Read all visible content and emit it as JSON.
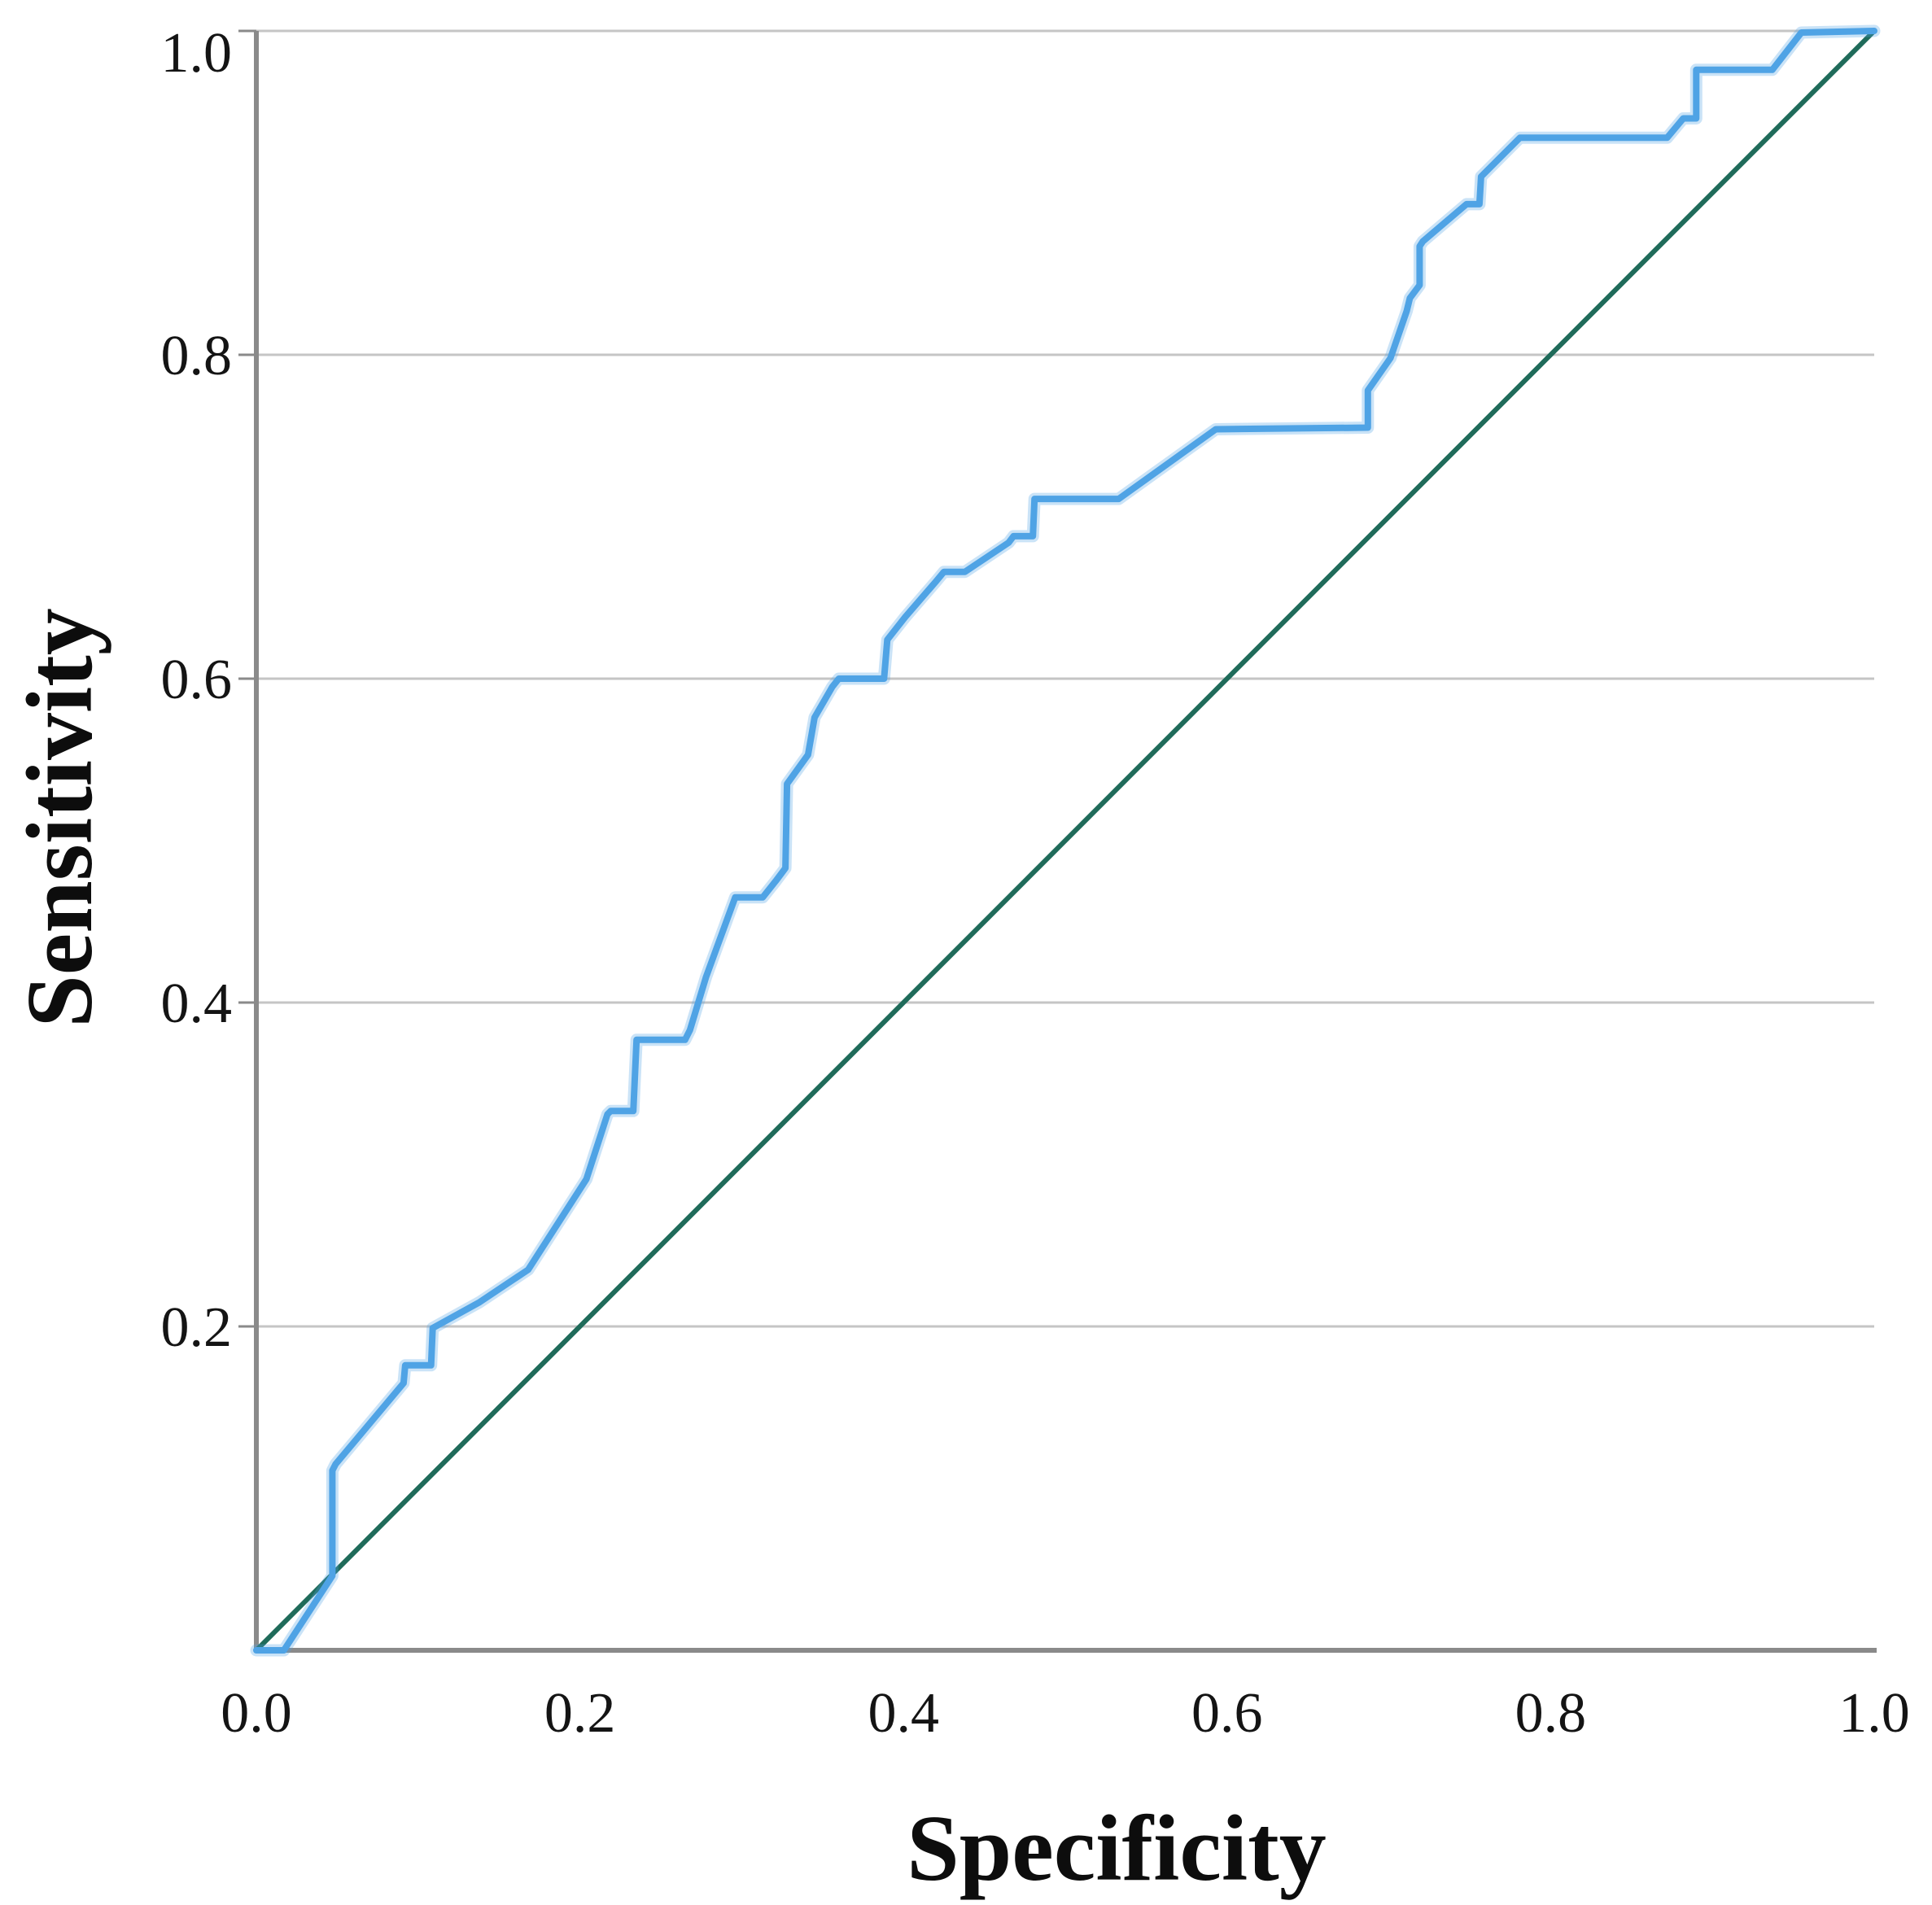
{
  "chart_data": {
    "type": "line",
    "title": "",
    "xlabel": "Specificity",
    "ylabel": "Sensitivity",
    "xlim": [
      0,
      1
    ],
    "ylim": [
      0,
      1
    ],
    "grid": "horizontal-only",
    "legend": "none",
    "x_ticks": {
      "values": [
        0,
        0.2,
        0.4,
        0.6,
        0.8,
        1.0
      ],
      "labels": [
        "0.0",
        "0.2",
        "0.4",
        "0.6",
        "0.8",
        "1.0"
      ]
    },
    "y_ticks": {
      "values": [
        0.2,
        0.4,
        0.6,
        0.8,
        1.0
      ],
      "labels": [
        "0.2",
        "0.4",
        "0.6",
        "0.8",
        "1.0"
      ]
    },
    "horizontal_gridlines": [
      0.2,
      0.4,
      0.6,
      0.8,
      1.0
    ],
    "series": [
      {
        "name": "ROC curve",
        "color": "#4FA3E5",
        "points": [
          [
            0.0,
            0.0
          ],
          [
            0.017,
            0.0
          ],
          [
            0.047,
            0.046
          ],
          [
            0.047,
            0.111
          ],
          [
            0.049,
            0.115
          ],
          [
            0.091,
            0.165
          ],
          [
            0.092,
            0.176
          ],
          [
            0.108,
            0.176
          ],
          [
            0.109,
            0.199
          ],
          [
            0.138,
            0.215
          ],
          [
            0.168,
            0.235
          ],
          [
            0.204,
            0.291
          ],
          [
            0.217,
            0.331
          ],
          [
            0.219,
            0.333
          ],
          [
            0.233,
            0.333
          ],
          [
            0.235,
            0.377
          ],
          [
            0.265,
            0.377
          ],
          [
            0.268,
            0.383
          ],
          [
            0.278,
            0.416
          ],
          [
            0.296,
            0.465
          ],
          [
            0.313,
            0.465
          ],
          [
            0.321,
            0.475
          ],
          [
            0.327,
            0.483
          ],
          [
            0.328,
            0.535
          ],
          [
            0.341,
            0.553
          ],
          [
            0.345,
            0.576
          ],
          [
            0.356,
            0.595
          ],
          [
            0.36,
            0.6
          ],
          [
            0.388,
            0.6
          ],
          [
            0.39,
            0.624
          ],
          [
            0.401,
            0.638
          ],
          [
            0.42,
            0.66
          ],
          [
            0.425,
            0.666
          ],
          [
            0.438,
            0.666
          ],
          [
            0.465,
            0.684
          ],
          [
            0.468,
            0.688
          ],
          [
            0.48,
            0.688
          ],
          [
            0.481,
            0.711
          ],
          [
            0.533,
            0.711
          ],
          [
            0.593,
            0.754
          ],
          [
            0.687,
            0.755
          ],
          [
            0.687,
            0.778
          ],
          [
            0.701,
            0.798
          ],
          [
            0.711,
            0.827
          ],
          [
            0.713,
            0.835
          ],
          [
            0.719,
            0.843
          ],
          [
            0.719,
            0.867
          ],
          [
            0.721,
            0.87
          ],
          [
            0.748,
            0.893
          ],
          [
            0.756,
            0.893
          ],
          [
            0.757,
            0.91
          ],
          [
            0.781,
            0.934
          ],
          [
            0.872,
            0.934
          ],
          [
            0.882,
            0.946
          ],
          [
            0.89,
            0.946
          ],
          [
            0.89,
            0.976
          ],
          [
            0.937,
            0.976
          ],
          [
            0.955,
            0.999
          ],
          [
            1.0,
            1.0
          ]
        ]
      },
      {
        "name": "Reference diagonal",
        "color": "#1F6B5A",
        "points": [
          [
            0,
            0
          ],
          [
            1,
            1
          ]
        ]
      }
    ],
    "colors": {
      "roc_line": "#4FA3E5",
      "roc_halo": "rgba(79,163,229,0.30)",
      "reference_line": "#1F6B5A",
      "axis": "#8A8A8A",
      "gridline": "#C5C5C5",
      "tick_text": "#141414"
    }
  }
}
